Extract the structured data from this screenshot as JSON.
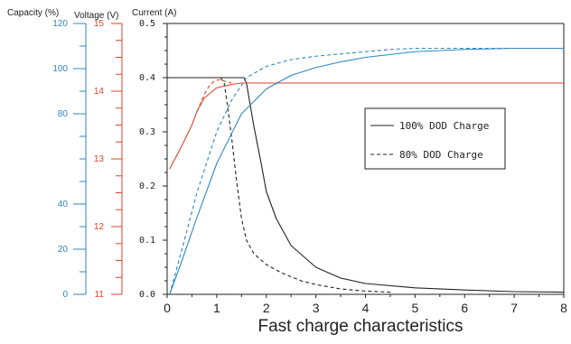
{
  "chart_data": {
    "type": "line",
    "title": "Fast charge characteristics",
    "x": {
      "lim": [
        0,
        8
      ],
      "ticks": [
        0,
        1,
        2,
        3,
        4,
        5,
        6,
        7,
        8
      ],
      "tick_labels": [
        "0",
        "1",
        "2",
        "3",
        "4",
        "5",
        "6",
        "7",
        "8"
      ]
    },
    "axes": {
      "current": {
        "label": "Current (A)",
        "lim": [
          0,
          0.5
        ],
        "ticks": [
          0.0,
          0.1,
          0.2,
          0.3,
          0.4,
          0.5
        ],
        "tick_labels": [
          "0.0",
          "0.1",
          "0.2",
          "0.3",
          "0.4",
          "0.5"
        ],
        "color": "#222222"
      },
      "voltage": {
        "label": "Voltage (V)",
        "lim": [
          11,
          15
        ],
        "ticks": [
          11,
          12,
          13,
          14,
          15
        ],
        "tick_labels": [
          "11",
          "12",
          "13",
          "14",
          "15"
        ],
        "color": "#d9462b"
      },
      "capacity": {
        "label": "Capacity (%)",
        "lim": [
          0,
          120
        ],
        "ticks": [
          0,
          20,
          40,
          80,
          100,
          120
        ],
        "tick_labels": [
          "0",
          "20",
          "40",
          "80",
          "100",
          "120"
        ],
        "color": "#2e86c1"
      }
    },
    "legend": {
      "placement": "right",
      "entries": [
        {
          "label": "100% DOD Charge",
          "style": "solid"
        },
        {
          "label": "80% DOD Charge",
          "style": "dashed"
        }
      ]
    },
    "series": [
      {
        "quantity": "current",
        "style": "solid",
        "color": "#222222",
        "x": [
          0,
          1.55,
          1.6,
          1.75,
          1.9,
          2.0,
          2.2,
          2.5,
          3.0,
          3.5,
          4.0,
          5.0,
          6.0,
          7.0,
          8.0
        ],
        "y": [
          0.4,
          0.4,
          0.39,
          0.31,
          0.24,
          0.19,
          0.14,
          0.09,
          0.05,
          0.03,
          0.02,
          0.012,
          0.008,
          0.005,
          0.004
        ]
      },
      {
        "quantity": "current",
        "style": "dashed",
        "color": "#222222",
        "x": [
          1.08,
          1.15,
          1.2,
          1.3,
          1.4,
          1.5,
          1.6,
          1.75,
          2.0,
          2.3,
          2.7,
          3.0,
          3.5,
          4.0,
          4.5
        ],
        "y": [
          0.4,
          0.39,
          0.36,
          0.29,
          0.21,
          0.14,
          0.1,
          0.075,
          0.055,
          0.04,
          0.025,
          0.018,
          0.01,
          0.006,
          0.004
        ]
      },
      {
        "quantity": "voltage",
        "style": "solid",
        "color": "#d9462b",
        "x": [
          0.05,
          0.3,
          0.5,
          0.6,
          0.75,
          1.0,
          1.3,
          1.5,
          2.0,
          3.0,
          4.0,
          5.0,
          6.0,
          7.0,
          8.0
        ],
        "y": [
          12.85,
          13.2,
          13.5,
          13.7,
          13.9,
          14.05,
          14.1,
          14.12,
          14.12,
          14.12,
          14.12,
          14.12,
          14.12,
          14.12,
          14.12
        ]
      },
      {
        "quantity": "voltage",
        "style": "dashed",
        "color": "#d9462b",
        "x": [
          0.6,
          0.75,
          0.85,
          0.95,
          1.05,
          1.15,
          1.3
        ],
        "y": [
          13.7,
          13.95,
          14.08,
          14.15,
          14.17,
          14.15,
          14.12
        ]
      },
      {
        "quantity": "capacity",
        "style": "solid",
        "color": "#2e86c1",
        "x": [
          0.05,
          0.3,
          0.6,
          1.0,
          1.5,
          2.0,
          2.5,
          3.0,
          3.5,
          4.0,
          5.0,
          6.0,
          7.0,
          8.0
        ],
        "y": [
          0,
          15,
          34,
          58,
          80,
          91,
          97,
          100.5,
          103,
          105,
          107.5,
          108.5,
          109,
          109
        ]
      },
      {
        "quantity": "capacity",
        "style": "dashed",
        "color": "#2e86c1",
        "x": [
          0.05,
          0.3,
          0.6,
          1.0,
          1.3,
          1.6,
          2.0,
          2.5,
          3.0,
          3.5,
          4.0,
          4.5,
          5.0,
          6.0,
          7.0,
          8.0
        ],
        "y": [
          0,
          20,
          45,
          72,
          86,
          96,
          101,
          104,
          105.5,
          106.5,
          107.5,
          108.5,
          109,
          109,
          109,
          109
        ]
      }
    ]
  }
}
